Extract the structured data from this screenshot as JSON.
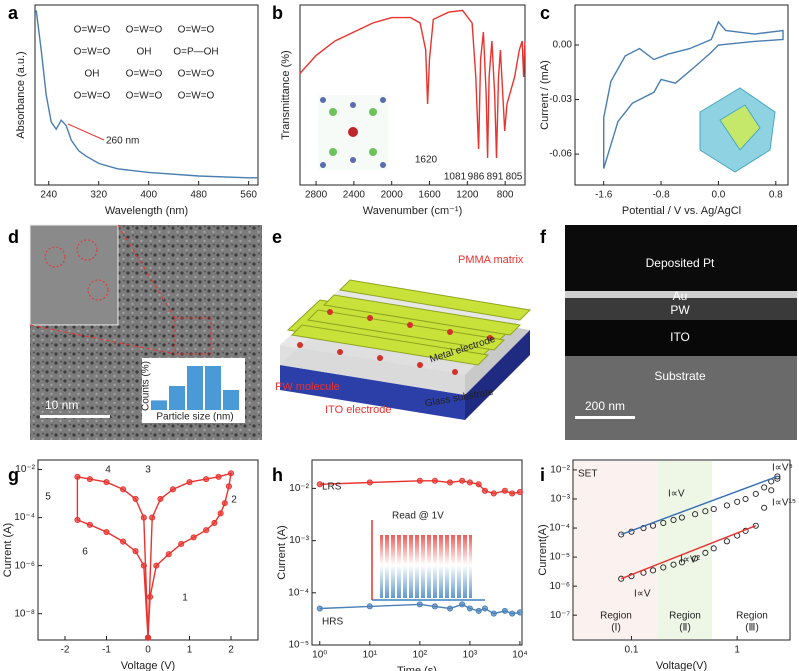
{
  "chart_data": [
    {
      "type": "line",
      "label": "a",
      "x_label": "Wavelength (nm)",
      "y_label": "Absorbance (a.u.)",
      "xlim": [
        218,
        575
      ],
      "ylim": [
        0,
        1
      ],
      "xticks": [
        240,
        320,
        400,
        480,
        560
      ],
      "annotations": [
        "260 nm"
      ],
      "structure": [
        "O=W=O",
        "O=W=O",
        "O=W=O",
        "O=W=O",
        "OH",
        "O=P—OH",
        "OH",
        "O=W=O",
        "O=W=O",
        "O=W=O",
        "O=W=O",
        "O=W=O"
      ],
      "series": [
        {
          "color": "#4a7eb0",
          "x": [
            220,
            228,
            236,
            244,
            252,
            260,
            268,
            276,
            288,
            300,
            320,
            350,
            400,
            480,
            560,
            575
          ],
          "values": [
            0.97,
            0.75,
            0.5,
            0.35,
            0.31,
            0.36,
            0.33,
            0.25,
            0.19,
            0.16,
            0.12,
            0.09,
            0.07,
            0.05,
            0.04,
            0.04
          ]
        }
      ]
    },
    {
      "type": "line",
      "label": "b",
      "x_label": "Wavenumber (cm⁻¹)",
      "y_label": "Transmittance (%)",
      "xlim": [
        2970,
        590
      ],
      "ylim": [
        0,
        1
      ],
      "xticks": [
        2800,
        2400,
        2000,
        1600,
        1200,
        800
      ],
      "annotations": [
        "1620",
        "1081",
        "986",
        "891",
        "805"
      ],
      "series": [
        {
          "color": "#e8332f",
          "x": [
            2970,
            2800,
            2600,
            2400,
            2200,
            2000,
            1800,
            1700,
            1640,
            1620,
            1600,
            1560,
            1400,
            1250,
            1150,
            1110,
            1081,
            1060,
            1030,
            1000,
            986,
            970,
            940,
            910,
            891,
            870,
            850,
            820,
            805,
            780,
            700,
            650,
            620,
            605,
            595,
            590
          ],
          "values": [
            0.62,
            0.72,
            0.8,
            0.85,
            0.9,
            0.93,
            0.93,
            0.9,
            0.75,
            0.45,
            0.7,
            0.92,
            0.96,
            0.97,
            0.9,
            0.6,
            0.2,
            0.7,
            0.85,
            0.5,
            0.15,
            0.6,
            0.8,
            0.5,
            0.15,
            0.6,
            0.75,
            0.45,
            0.3,
            0.45,
            0.6,
            0.75,
            0.8,
            0.6,
            0.75,
            0.8
          ]
        }
      ]
    },
    {
      "type": "line",
      "label": "c",
      "x_label": "Potential / V vs. Ag/AgCl",
      "y_label": "Current / (mA)",
      "xlim": [
        -2.0,
        0.97
      ],
      "ylim": [
        -0.077,
        0.022
      ],
      "xticks": [
        -1.6,
        -0.8,
        {
          "value": 0,
          "label": "0.0"
        },
        0.8
      ],
      "yticks": [
        {
          "value": 0,
          "label": "0.00"
        },
        {
          "value": -0.03,
          "label": "-0.03"
        },
        {
          "value": -0.06,
          "label": "-0.06"
        }
      ],
      "series": [
        {
          "color": "#4a7eb0",
          "x": [
            -1.6,
            -1.4,
            -1.2,
            -0.9,
            -0.8,
            -0.6,
            -0.3,
            -0.1,
            0.0,
            0.5,
            0.9,
            0.9,
            0.5,
            0.1,
            0.0,
            -0.1,
            -0.4,
            -0.7,
            -0.9,
            -1.1,
            -1.3,
            -1.5,
            -1.6,
            -1.6
          ],
          "values": [
            -0.068,
            -0.042,
            -0.032,
            -0.026,
            -0.019,
            -0.021,
            -0.011,
            -0.004,
            0.0,
            0.002,
            0.003,
            0.008,
            0.006,
            0.008,
            0.0127,
            0.003,
            -0.002,
            -0.005,
            -0.008,
            -0.002,
            -0.006,
            -0.02,
            -0.04,
            -0.068
          ]
        }
      ]
    },
    {
      "type": "line",
      "label": "g",
      "x_label": "Voltage (V)",
      "y_label": "Current (A)",
      "yscale": "log",
      "markers": true,
      "xlim": [
        -2.65,
        2.65
      ],
      "ylim": [
        8e-10,
        0.025
      ],
      "xticks": [
        -2,
        -1,
        0,
        1,
        2
      ],
      "yticks": [
        {
          "value": 1e-08,
          "label": "10⁻⁸"
        },
        {
          "value": 1e-06,
          "label": "10⁻⁶"
        },
        {
          "value": 0.0001,
          "label": "10⁻⁴"
        },
        {
          "value": 0.01,
          "label": "10⁻²"
        }
      ],
      "annotations": [
        "1",
        "2",
        "3",
        "4",
        "5",
        "6"
      ],
      "series": [
        {
          "color": "#e8332f",
          "x": [
            0,
            0.05,
            0.2,
            0.5,
            0.8,
            1.1,
            1.4,
            1.6,
            1.75,
            1.85,
            1.95,
            2.0,
            1.7,
            1.4,
            1.0,
            0.6,
            0.3,
            0.1,
            0.0,
            -0.1,
            -0.3,
            -0.6,
            -1.0,
            -1.4,
            -1.7,
            -1.7,
            -1.4,
            -1.0,
            -0.6,
            -0.3,
            -0.1,
            0.0
          ],
          "values": [
            1e-09,
            5e-08,
            1e-06,
            3e-06,
            8e-06,
            1.5e-05,
            3e-05,
            6e-05,
            0.00015,
            0.0004,
            0.002,
            0.007,
            0.005,
            0.004,
            0.003,
            0.0015,
            0.0006,
            0.0001,
            1e-09,
            0.0001,
            0.0006,
            0.0015,
            0.003,
            0.004,
            0.005,
            8e-05,
            5e-05,
            2.5e-05,
            1e-05,
            4e-06,
            1e-06,
            1e-09
          ]
        }
      ]
    },
    {
      "type": "line",
      "label": "h",
      "x_label": "Time (s)",
      "y_label": "Current (A)",
      "xscale": "log",
      "yscale": "log",
      "markers": true,
      "xlim": [
        0.7,
        11000
      ],
      "ylim": [
        1e-05,
        0.035
      ],
      "xticks": [
        {
          "value": 1,
          "label": "10⁰"
        },
        {
          "value": 10,
          "label": "10¹"
        },
        {
          "value": 100,
          "label": "10²"
        },
        {
          "value": 1000,
          "label": "10³"
        },
        {
          "value": 10000,
          "label": "10⁴"
        }
      ],
      "yticks": [
        {
          "value": 1e-05,
          "label": "10⁻⁵"
        },
        {
          "value": 0.0001,
          "label": "10⁻⁴"
        },
        {
          "value": 0.001,
          "label": "10⁻³"
        },
        {
          "value": 0.01,
          "label": "10⁻²"
        }
      ],
      "annotations": [
        "LRS",
        "HRS",
        "Read @ 1V"
      ],
      "series": [
        {
          "name": "LRS",
          "color": "#e8332f",
          "x": [
            1,
            10,
            100,
            200,
            400,
            700,
            1000,
            1500,
            2000,
            3000,
            5000,
            7000,
            10000
          ],
          "values": [
            0.012,
            0.013,
            0.014,
            0.014,
            0.013,
            0.014,
            0.013,
            0.012,
            0.009,
            0.008,
            0.009,
            0.008,
            0.0085
          ]
        },
        {
          "name": "HRS",
          "color": "#4a80b8",
          "x": [
            1,
            10,
            100,
            200,
            400,
            700,
            1000,
            1500,
            2000,
            3000,
            5000,
            7000,
            10000
          ],
          "values": [
            5e-05,
            5.5e-05,
            6e-05,
            5.5e-05,
            5e-05,
            6e-05,
            5e-05,
            4.5e-05,
            5e-05,
            4e-05,
            4.5e-05,
            4e-05,
            4.2e-05
          ]
        }
      ]
    },
    {
      "type": "line",
      "label": "i",
      "x_label": "Voltage(V)",
      "y_label": "Current(A)",
      "xscale": "log",
      "yscale": "log",
      "xlim": [
        0.028,
        3.16
      ],
      "ylim": [
        1.4e-08,
        0.022
      ],
      "xticks": [
        0.1,
        1
      ],
      "yticks": [
        {
          "value": 1e-07,
          "label": "10⁻⁷"
        },
        {
          "value": 1e-06,
          "label": "10⁻⁶"
        },
        {
          "value": 1e-05,
          "label": "10⁻⁵"
        },
        {
          "value": 0.0001,
          "label": "10⁻⁴"
        },
        {
          "value": 0.001,
          "label": "10⁻³"
        },
        {
          "value": 0.01,
          "label": "10⁻²"
        }
      ],
      "annotations": [
        "SET",
        "I∝V",
        "I∝V⁵",
        "I∝V¹⁵",
        "I∝V²",
        "I∝V"
      ],
      "regions": [
        [
          "Region",
          "(Ⅰ)"
        ],
        [
          "Region",
          "(Ⅱ)"
        ],
        [
          "Region",
          "(Ⅲ)"
        ]
      ],
      "series": [
        {
          "style": "markers",
          "color": "#222",
          "x": [
            0.08,
            0.1,
            0.13,
            0.16,
            0.2,
            0.25,
            0.3,
            0.4,
            0.5,
            0.6,
            0.8,
            1.0,
            1.2,
            1.5,
            1.8,
            2.1,
            2.4
          ],
          "values": [
            6e-05,
            7.5e-05,
            0.0001,
            0.00012,
            0.00015,
            0.00019,
            0.00023,
            0.0003,
            0.00038,
            0.00045,
            0.0006,
            0.0008,
            0.001,
            0.0015,
            0.0025,
            0.004,
            0.006
          ]
        },
        {
          "style": "markers",
          "color": "#222",
          "x": [
            0.08,
            0.1,
            0.13,
            0.16,
            0.2,
            0.25,
            0.3,
            0.4,
            0.5,
            0.6,
            0.8,
            1.0,
            1.2,
            1.5,
            1.8,
            2.1,
            2.4
          ],
          "values": [
            1.8e-06,
            2.2e-06,
            2.9e-06,
            3.5e-06,
            4.4e-06,
            5.5e-06,
            6.6e-06,
            9e-06,
            1.4e-05,
            2e-05,
            3.5e-05,
            5.5e-05,
            8e-05,
            0.00012,
            0.0005,
            0.002,
            0.005
          ]
        },
        {
          "style": "line",
          "color": "#2f6db5",
          "x": [
            0.08,
            2.4
          ],
          "values": [
            6e-05,
            0.006
          ]
        },
        {
          "style": "line",
          "color": "#e8332f",
          "x": [
            0.08,
            1.5
          ],
          "values": [
            1.8e-06,
            0.00012
          ]
        }
      ]
    }
  ],
  "image_panels": [
    {
      "label": "d",
      "scale_bar": "10 nm",
      "histogram": {
        "x_label": "Particle size (nm)",
        "y_label": "Counts (%)",
        "ylim": [
          0,
          60
        ],
        "values": [
          12,
          30,
          55,
          55,
          25
        ]
      }
    },
    {
      "label": "e",
      "labels": [
        "PMMA matrix",
        "Metal electrode",
        "PW molecule",
        "ITO electrode",
        "Glass substrate"
      ]
    },
    {
      "label": "f",
      "labels": [
        "Deposited Pt",
        "Au",
        "PW",
        "ITO",
        "Substrate"
      ],
      "scale_bar": "200 nm"
    }
  ]
}
